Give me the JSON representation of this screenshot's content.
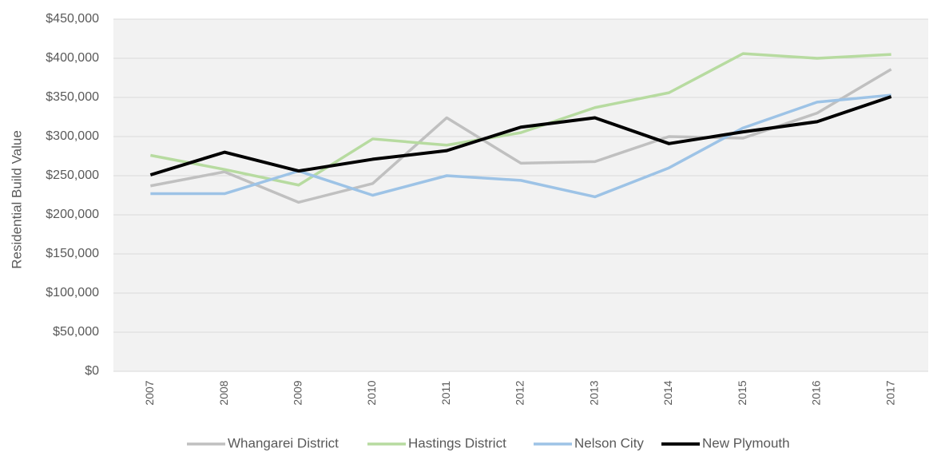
{
  "chart_data": {
    "type": "line",
    "y_label": "Residential Build Value",
    "categories": [
      "2007",
      "2008",
      "2009",
      "2010",
      "2011",
      "2012",
      "2013",
      "2014",
      "2015",
      "2016",
      "2017"
    ],
    "series": [
      {
        "name": "Whangarei District",
        "color": "#c0c0c0",
        "values": [
          237000,
          255000,
          216000,
          240000,
          324000,
          266000,
          268000,
          300000,
          298000,
          330000,
          386000
        ]
      },
      {
        "name": "Hastings District",
        "color": "#b7dba0",
        "values": [
          276000,
          258000,
          238000,
          297000,
          289000,
          305000,
          337000,
          356000,
          406000,
          400000,
          405000
        ]
      },
      {
        "name": "Nelson City",
        "color": "#9dc3e6",
        "values": [
          227000,
          227000,
          256000,
          225000,
          250000,
          244000,
          223000,
          260000,
          311000,
          344000,
          353000
        ]
      },
      {
        "name": "New Plymouth",
        "color": "#000000",
        "values": [
          251000,
          280000,
          256000,
          271000,
          282000,
          312000,
          324000,
          291000,
          306000,
          319000,
          351000
        ]
      }
    ],
    "ylim": [
      0,
      450000
    ],
    "yticks": [
      {
        "value": 0,
        "label": "$0"
      },
      {
        "value": 50000,
        "label": "$50,000"
      },
      {
        "value": 100000,
        "label": "$100,000"
      },
      {
        "value": 150000,
        "label": "$150,000"
      },
      {
        "value": 200000,
        "label": "$200,000"
      },
      {
        "value": 250000,
        "label": "$250,000"
      },
      {
        "value": 300000,
        "label": "$300,000"
      },
      {
        "value": 350000,
        "label": "$350,000"
      },
      {
        "value": 400000,
        "label": "$400,000"
      },
      {
        "value": 450000,
        "label": "$450,000"
      }
    ],
    "grid": true,
    "legend": "bottom"
  }
}
